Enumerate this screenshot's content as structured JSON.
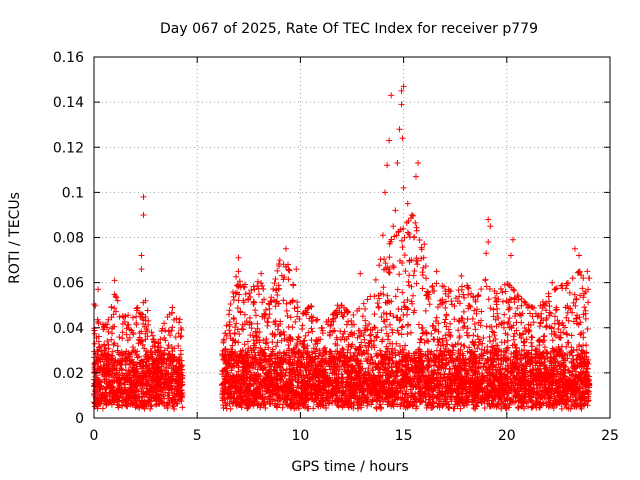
{
  "chart_data": {
    "type": "scatter",
    "title": "Day 067 of 2025, Rate Of TEC Index for receiver p779",
    "xlabel": "GPS time / hours",
    "ylabel": "ROTI / TECUs",
    "xlim": [
      0,
      25
    ],
    "ylim": [
      0,
      0.16
    ],
    "grid": true,
    "marker": "+",
    "color": "#ff0000",
    "x_ticks": [
      "0",
      "5",
      "10",
      "15",
      "20",
      "25"
    ],
    "y_ticks": [
      "0",
      "0.02",
      "0.04",
      "0.06",
      "0.08",
      "0.1",
      "0.12",
      "0.14",
      "0.16"
    ],
    "x_tick_values": [
      0,
      5,
      10,
      15,
      20,
      25
    ],
    "y_tick_values": [
      0,
      0.02,
      0.04,
      0.06,
      0.08,
      0.1,
      0.12,
      0.14,
      0.16
    ],
    "data_gaps_hours": [
      [
        4.3,
        6.2
      ]
    ],
    "envelope": {
      "x": [
        0.0,
        0.5,
        1.0,
        1.5,
        2.0,
        2.5,
        3.0,
        3.5,
        4.0,
        4.3,
        6.2,
        6.5,
        7.0,
        7.5,
        8.0,
        8.5,
        9.0,
        9.5,
        10.0,
        10.5,
        11.0,
        11.5,
        12.0,
        12.5,
        13.0,
        13.5,
        14.0,
        14.5,
        15.0,
        15.5,
        16.0,
        16.5,
        17.0,
        17.5,
        18.0,
        18.5,
        19.0,
        19.5,
        20.0,
        20.5,
        21.0,
        21.5,
        22.0,
        22.5,
        23.0,
        23.5,
        23.9
      ],
      "top": [
        0.052,
        0.04,
        0.055,
        0.045,
        0.048,
        0.052,
        0.03,
        0.045,
        0.048,
        0.04,
        0.03,
        0.045,
        0.068,
        0.055,
        0.062,
        0.05,
        0.07,
        0.065,
        0.045,
        0.05,
        0.04,
        0.045,
        0.05,
        0.045,
        0.05,
        0.055,
        0.075,
        0.08,
        0.085,
        0.09,
        0.07,
        0.06,
        0.058,
        0.055,
        0.06,
        0.052,
        0.062,
        0.055,
        0.06,
        0.055,
        0.05,
        0.048,
        0.055,
        0.058,
        0.06,
        0.065,
        0.062
      ]
    },
    "notable_points": [
      {
        "x": 2.4,
        "y": 0.098
      },
      {
        "x": 2.4,
        "y": 0.09
      },
      {
        "x": 2.3,
        "y": 0.072
      },
      {
        "x": 2.3,
        "y": 0.066
      },
      {
        "x": 0.2,
        "y": 0.057
      },
      {
        "x": 1.0,
        "y": 0.061
      },
      {
        "x": 3.8,
        "y": 0.049
      },
      {
        "x": 7.0,
        "y": 0.071
      },
      {
        "x": 7.0,
        "y": 0.065
      },
      {
        "x": 8.1,
        "y": 0.064
      },
      {
        "x": 9.3,
        "y": 0.075
      },
      {
        "x": 9.4,
        "y": 0.068
      },
      {
        "x": 9.8,
        "y": 0.066
      },
      {
        "x": 14.0,
        "y": 0.081
      },
      {
        "x": 14.1,
        "y": 0.1
      },
      {
        "x": 14.2,
        "y": 0.112
      },
      {
        "x": 14.3,
        "y": 0.123
      },
      {
        "x": 14.4,
        "y": 0.143
      },
      {
        "x": 14.7,
        "y": 0.113
      },
      {
        "x": 14.8,
        "y": 0.128
      },
      {
        "x": 14.9,
        "y": 0.139
      },
      {
        "x": 14.9,
        "y": 0.145
      },
      {
        "x": 15.0,
        "y": 0.147
      },
      {
        "x": 14.95,
        "y": 0.124
      },
      {
        "x": 15.0,
        "y": 0.102
      },
      {
        "x": 14.6,
        "y": 0.092
      },
      {
        "x": 14.5,
        "y": 0.085
      },
      {
        "x": 15.2,
        "y": 0.095
      },
      {
        "x": 15.4,
        "y": 0.09
      },
      {
        "x": 15.7,
        "y": 0.113
      },
      {
        "x": 15.6,
        "y": 0.107
      },
      {
        "x": 15.5,
        "y": 0.08
      },
      {
        "x": 16.0,
        "y": 0.077
      },
      {
        "x": 16.6,
        "y": 0.065
      },
      {
        "x": 19.1,
        "y": 0.088
      },
      {
        "x": 19.2,
        "y": 0.085
      },
      {
        "x": 19.1,
        "y": 0.078
      },
      {
        "x": 19.0,
        "y": 0.073
      },
      {
        "x": 20.3,
        "y": 0.079
      },
      {
        "x": 20.2,
        "y": 0.072
      },
      {
        "x": 22.2,
        "y": 0.06
      },
      {
        "x": 23.3,
        "y": 0.075
      },
      {
        "x": 23.5,
        "y": 0.072
      },
      {
        "x": 23.9,
        "y": 0.065
      },
      {
        "x": 17.8,
        "y": 0.063
      },
      {
        "x": 12.9,
        "y": 0.064
      },
      {
        "x": 11.8,
        "y": 0.05
      },
      {
        "x": 10.6,
        "y": 0.043
      }
    ]
  }
}
